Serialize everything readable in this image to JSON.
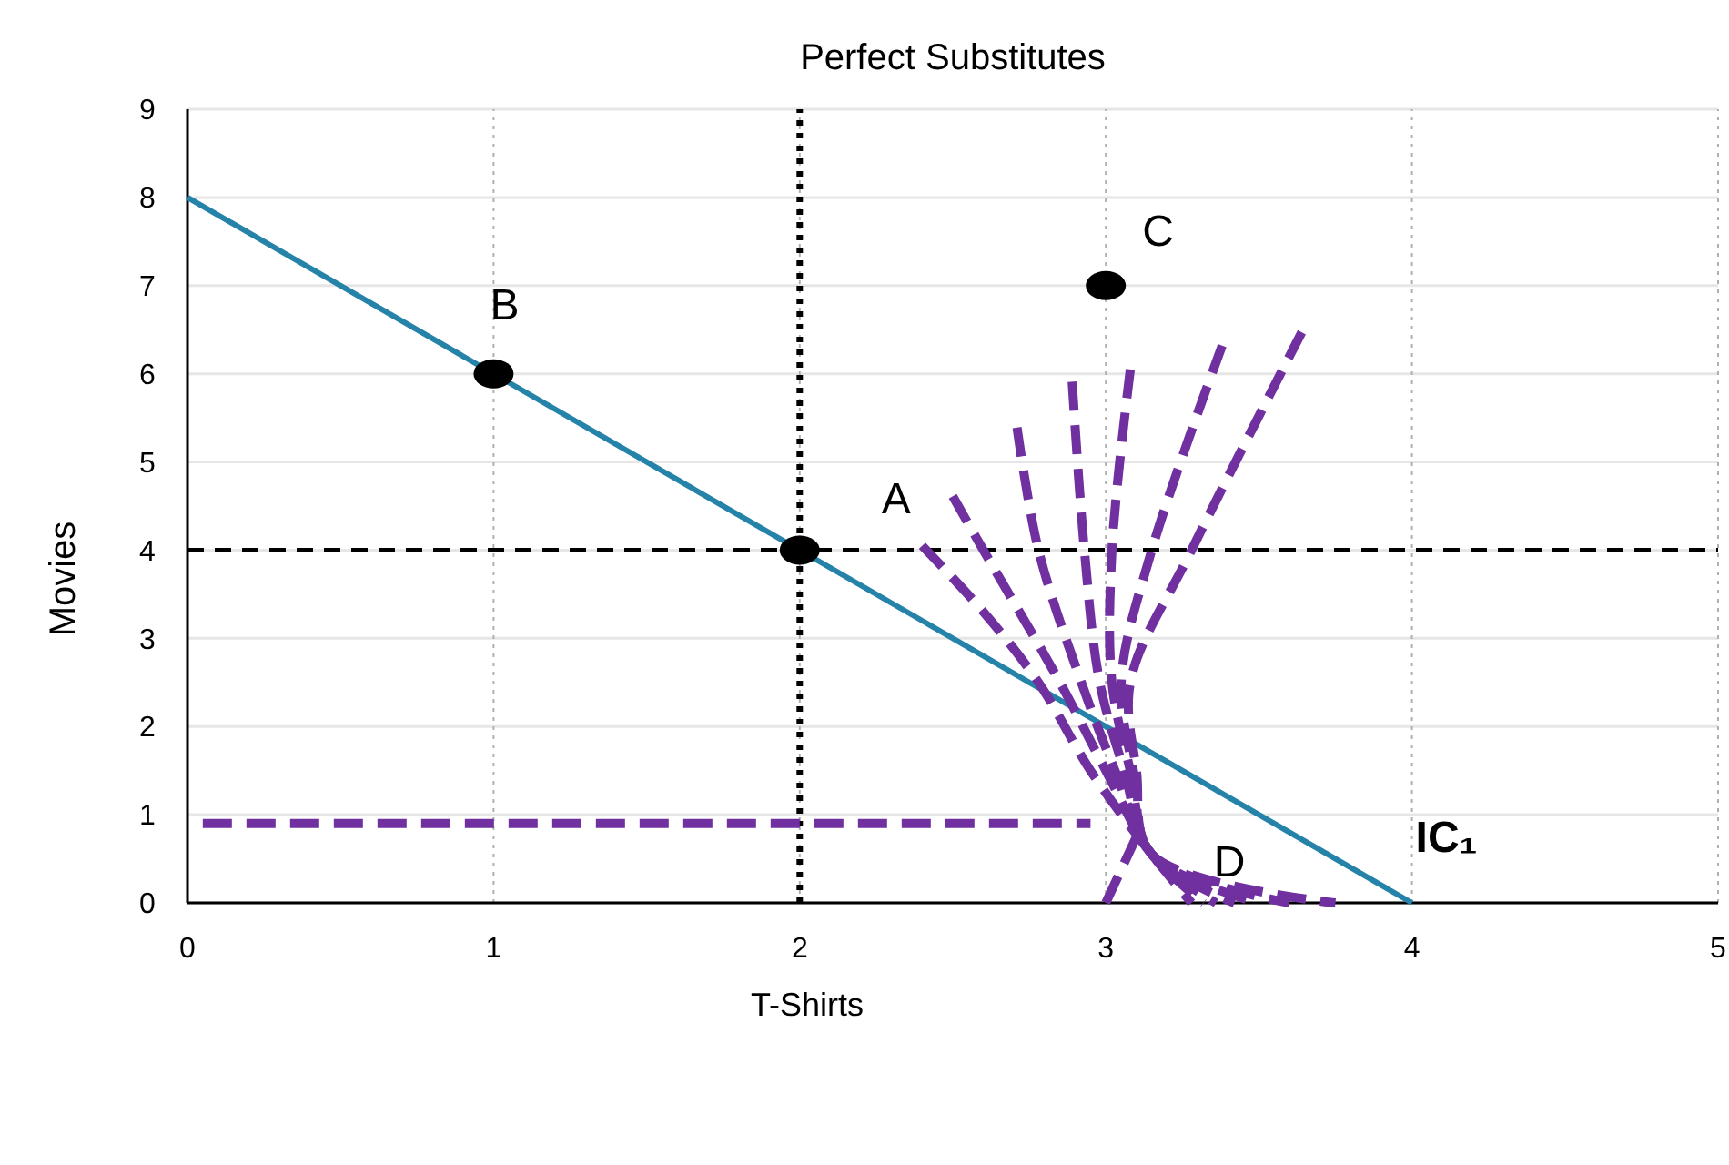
{
  "chart_data": {
    "type": "line",
    "title": "Perfect Substitutes",
    "xlabel": "T-Shirts",
    "ylabel": "Movies",
    "xlim": [
      0,
      5
    ],
    "xticks": [
      0,
      1,
      2,
      3,
      4,
      5
    ],
    "ylim": [
      0,
      9
    ],
    "yticks": [
      0,
      1,
      2,
      3,
      4,
      5,
      6,
      7,
      8,
      9
    ],
    "grid": true,
    "series": [
      {
        "color": "#2582a8",
        "x": [
          0,
          4
        ],
        "values": [
          8,
          0
        ],
        "marker": "none",
        "line_style": "solid"
      },
      {
        "color": "#7030a0",
        "x": [
          0.05,
          2.95
        ],
        "values": [
          0.9,
          0.9
        ],
        "marker": "none",
        "line_style": "dashed"
      },
      {
        "color": "#7030a0",
        "x": [
          2.4,
          2.6,
          2.78,
          2.95,
          3.15,
          3.28
        ],
        "values": [
          4.05,
          3.3,
          2.5,
          1.5,
          0.55,
          0
        ],
        "marker": "none",
        "line_style": "dashed"
      },
      {
        "color": "#7030a0",
        "x": [
          2.5,
          2.6,
          2.85,
          3.0,
          3.15,
          3.32
        ],
        "values": [
          4.61,
          4,
          2.5,
          1.5,
          0.55,
          0
        ],
        "marker": "none",
        "line_style": "dashed"
      },
      {
        "color": "#7030a0",
        "x": [
          2.71,
          2.78,
          2.92,
          3.03,
          3.15,
          3.36
        ],
        "values": [
          5.39,
          4,
          2.5,
          1.5,
          0.55,
          0
        ],
        "marker": "none",
        "line_style": "dashed"
      },
      {
        "color": "#7030a0",
        "x": [
          2.89,
          2.93,
          2.98,
          3.06,
          3.15,
          3.42
        ],
        "values": [
          5.91,
          4,
          2.5,
          1.5,
          0.55,
          0
        ],
        "marker": "none",
        "line_style": "dashed"
      },
      {
        "color": "#7030a0",
        "x": [
          3.08,
          3.02,
          3.02,
          3.08,
          3.15,
          3.5
        ],
        "values": [
          6.05,
          4,
          2.5,
          1.5,
          0.55,
          0
        ],
        "marker": "none",
        "line_style": "dashed"
      },
      {
        "color": "#7030a0",
        "x": [
          3.38,
          3.15,
          3.05,
          3.09,
          3.15,
          3.6
        ],
        "values": [
          6.32,
          4,
          2.5,
          1.5,
          0.55,
          0
        ],
        "marker": "none",
        "line_style": "dashed"
      },
      {
        "color": "#7030a0",
        "x": [
          3.64,
          3.28,
          3.08,
          3.1,
          3.15,
          3.75
        ],
        "values": [
          6.47,
          4,
          2.5,
          1.5,
          0.55,
          0
        ],
        "marker": "none",
        "line_style": "dashed"
      },
      {
        "color": "#7030a0",
        "x": [
          3.1,
          3.0
        ],
        "values": [
          0.75,
          0
        ],
        "marker": "none",
        "line_style": "dashed"
      },
      {
        "type": "scatter",
        "color": "#000000",
        "x": [
          1,
          2,
          3
        ],
        "values": [
          6,
          4,
          7
        ],
        "marker": "circle"
      }
    ],
    "ref_lines": [
      {
        "axis": "x",
        "value": 2,
        "color": "#000000",
        "line_style": "dotted"
      },
      {
        "axis": "y",
        "value": 4,
        "color": "#000000",
        "line_style": "dashed"
      }
    ],
    "annotations": [
      {
        "text": "B",
        "x": 1,
        "y": 6
      },
      {
        "text": "C",
        "x": 3,
        "y": 7
      },
      {
        "text": "A",
        "x": 2,
        "y": 4
      },
      {
        "text": "D",
        "x": 3.15,
        "y": 0.55
      },
      {
        "text": "IC₁",
        "x": 4,
        "y": 0
      }
    ]
  }
}
